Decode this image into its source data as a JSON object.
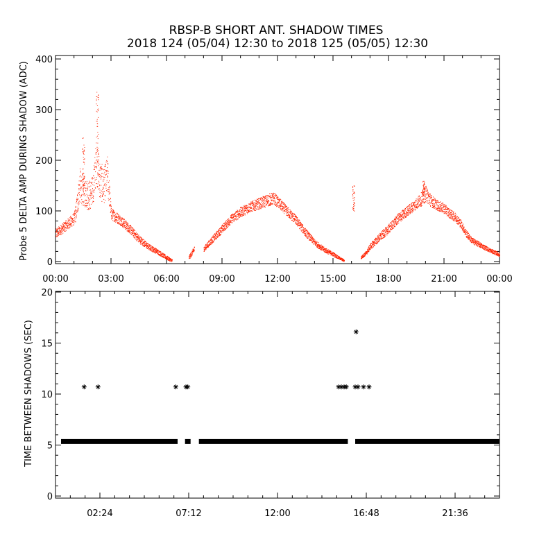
{
  "title_line1": "RBSP-B SHORT ANT. SHADOW TIMES",
  "title_line2": "2018 124 (05/04) 12:30 to 2018 125 (05/05) 12:30",
  "chart_data": [
    {
      "type": "scatter",
      "ylabel": "Probe 5 DELTA AMP DURING SHADOW (ADC)",
      "xlim_hours": [
        0,
        24
      ],
      "ylim": [
        0,
        400
      ],
      "xtick_labels": [
        "00:00",
        "03:00",
        "06:00",
        "09:00",
        "12:00",
        "15:00",
        "18:00",
        "21:00",
        "00:00"
      ],
      "xtick_hours": [
        0,
        3,
        6,
        9,
        12,
        15,
        18,
        21,
        24
      ],
      "ytick_labels": [
        "0",
        "100",
        "200",
        "300",
        "400"
      ],
      "ytick_values": [
        0,
        100,
        200,
        300,
        400
      ],
      "color": "#ff2200",
      "envelope": {
        "x_hours": [
          0,
          0.5,
          1.0,
          1.1,
          1.3,
          1.5,
          1.8,
          2.0,
          2.2,
          2.4,
          2.6,
          2.8,
          3.0,
          3.5,
          4.0,
          4.5,
          5.0,
          5.5,
          6.0,
          6.3,
          6.6,
          6.8,
          7.0,
          7.2,
          7.5,
          7.8,
          8.0,
          8.5,
          9.0,
          9.5,
          10.0,
          10.5,
          11.0,
          11.5,
          11.8,
          12.0,
          12.5,
          13.0,
          13.5,
          14.0,
          14.5,
          15.0,
          15.3,
          15.6,
          15.9,
          16.1,
          16.3,
          16.5,
          16.8,
          17.0,
          17.5,
          18.0,
          18.5,
          19.0,
          19.5,
          19.8,
          20.0,
          20.3,
          20.6,
          21.0,
          21.3,
          21.6,
          21.9,
          22.2,
          22.5,
          23.0,
          23.5,
          24.0
        ],
        "y_values": [
          55,
          70,
          85,
          100,
          150,
          140,
          130,
          140,
          200,
          160,
          150,
          170,
          95,
          82,
          65,
          45,
          30,
          20,
          8,
          2,
          null,
          null,
          null,
          8,
          25,
          null,
          25,
          45,
          65,
          85,
          98,
          108,
          115,
          122,
          125,
          118,
          100,
          82,
          58,
          38,
          24,
          15,
          8,
          2,
          null,
          null,
          null,
          8,
          18,
          30,
          48,
          65,
          85,
          100,
          115,
          125,
          135,
          120,
          112,
          105,
          95,
          88,
          75,
          55,
          42,
          32,
          22,
          14
        ],
        "spread": [
          10,
          10,
          12,
          20,
          35,
          30,
          30,
          30,
          45,
          40,
          35,
          40,
          12,
          10,
          9,
          8,
          6,
          5,
          4,
          3,
          null,
          null,
          null,
          4,
          6,
          null,
          5,
          7,
          8,
          9,
          10,
          10,
          11,
          12,
          12,
          11,
          10,
          9,
          8,
          6,
          5,
          4,
          3,
          2,
          null,
          null,
          null,
          3,
          4,
          6,
          8,
          9,
          10,
          10,
          11,
          14,
          16,
          12,
          10,
          10,
          9,
          9,
          8,
          7,
          6,
          5,
          4,
          4
        ]
      },
      "spikes": [
        {
          "x_hours": 2.25,
          "y_max": 335
        },
        {
          "x_hours": 1.5,
          "y_max": 250
        },
        {
          "x_hours": 16.1,
          "y_max": 150
        },
        {
          "x_hours": 19.9,
          "y_max": 160
        }
      ]
    },
    {
      "type": "scatter",
      "ylabel": "TIME BETWEEN SHADOWS (SEC)",
      "xlim_hours": [
        0,
        24
      ],
      "ylim": [
        0,
        20
      ],
      "xtick_labels": [
        "02:24",
        "07:12",
        "12:00",
        "16:48",
        "21:36"
      ],
      "xtick_hours": [
        2.4,
        7.2,
        12.0,
        16.8,
        21.6
      ],
      "ytick_labels": [
        "0",
        "5",
        "10",
        "15",
        "20"
      ],
      "ytick_values": [
        0,
        5,
        10,
        15,
        20
      ],
      "marker": "asterisk",
      "color": "#000000",
      "baseline": {
        "y": 5.35,
        "x_start_hours": 0.3,
        "x_end_hours": 24.0,
        "gaps": [
          [
            6.6,
            7.0
          ],
          [
            7.3,
            7.75
          ],
          [
            15.8,
            16.2
          ]
        ]
      },
      "points": [
        {
          "x_hours": 1.55,
          "y": 10.7
        },
        {
          "x_hours": 2.3,
          "y": 10.7
        },
        {
          "x_hours": 6.5,
          "y": 10.7
        },
        {
          "x_hours": 7.05,
          "y": 10.7
        },
        {
          "x_hours": 7.15,
          "y": 10.7
        },
        {
          "x_hours": 15.3,
          "y": 10.7
        },
        {
          "x_hours": 15.45,
          "y": 10.7
        },
        {
          "x_hours": 15.6,
          "y": 10.7
        },
        {
          "x_hours": 15.72,
          "y": 10.7
        },
        {
          "x_hours": 16.2,
          "y": 10.7
        },
        {
          "x_hours": 16.35,
          "y": 10.7
        },
        {
          "x_hours": 16.65,
          "y": 10.7
        },
        {
          "x_hours": 16.95,
          "y": 10.7
        },
        {
          "x_hours": 16.25,
          "y": 16.1
        }
      ]
    }
  ]
}
